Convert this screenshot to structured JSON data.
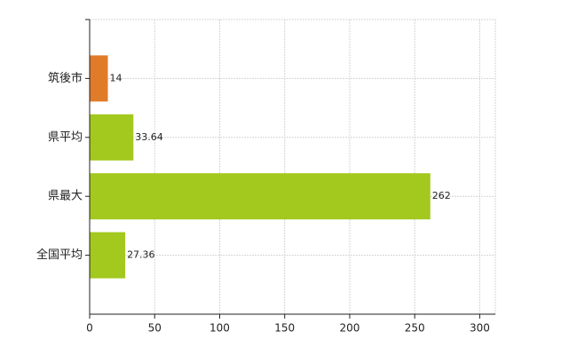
{
  "chart_data": {
    "type": "bar",
    "orientation": "horizontal",
    "categories": [
      "筑後市",
      "県平均",
      "県最大",
      "全国平均"
    ],
    "values": [
      14,
      33.64,
      262,
      27.36
    ],
    "colors": [
      "#e07b2a",
      "#a3c81e",
      "#a3c81e",
      "#a3c81e"
    ],
    "xlim": [
      0,
      312
    ],
    "xticks": [
      0,
      50,
      100,
      150,
      200,
      250,
      300
    ],
    "grid": true
  }
}
